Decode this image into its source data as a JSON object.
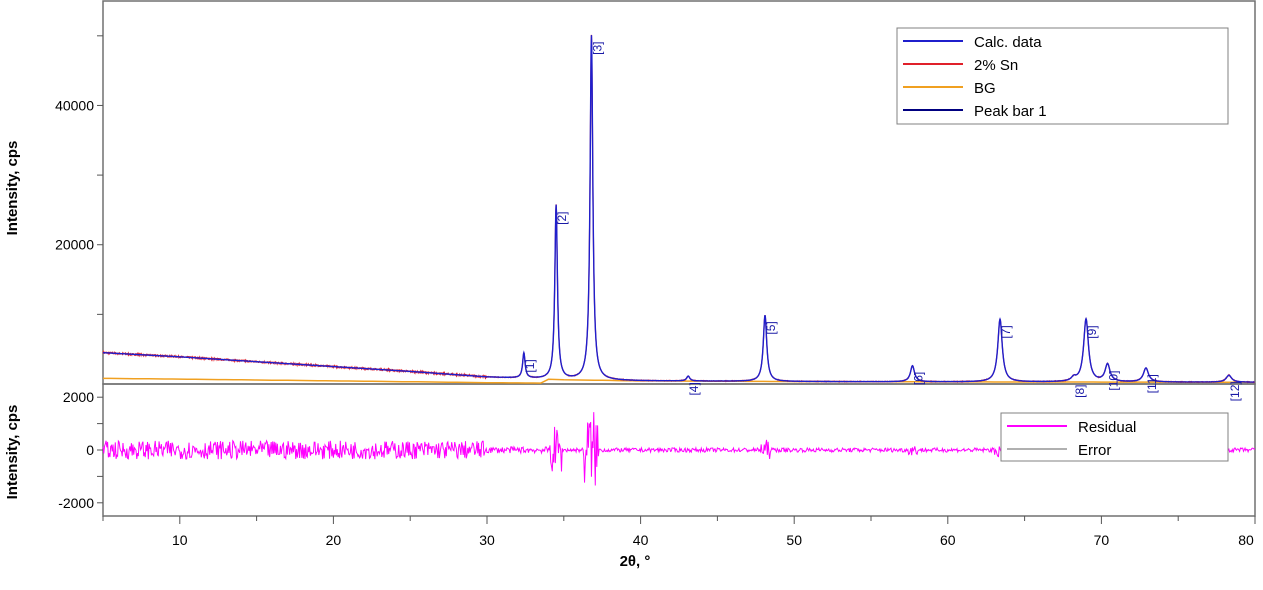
{
  "chart_data": [
    {
      "type": "line",
      "panel": "main",
      "xlabel": "2θ, °",
      "ylabel": "Intensity, cps",
      "xlim": [
        5,
        80
      ],
      "ylim": [
        0,
        55000
      ],
      "x_ticks": [
        10,
        20,
        30,
        40,
        50,
        60,
        70,
        80
      ],
      "y_ticks": [
        20000,
        40000
      ],
      "legend": {
        "placement": "top-right",
        "entries": [
          {
            "label": "Calc. data",
            "color": "#1f1fcc"
          },
          {
            "label": "2% Sn",
            "color": "#e0202a"
          },
          {
            "label": "BG",
            "color": "#f0a020"
          },
          {
            "label": "Peak bar 1",
            "color": "#000080"
          }
        ]
      },
      "background": {
        "x": [
          5,
          10,
          15,
          20,
          25,
          30,
          35,
          40,
          50,
          60,
          70,
          80
        ],
        "y": [
          4500,
          3900,
          3200,
          2500,
          1800,
          1000,
          600,
          450,
          350,
          300,
          280,
          250
        ]
      },
      "peaks": [
        {
          "label": "[1]",
          "x": 32.4,
          "y": 3600
        },
        {
          "label": "[2]",
          "x": 34.5,
          "y": 25000
        },
        {
          "label": "[3]",
          "x": 36.8,
          "y": 49500
        },
        {
          "label": "[4]",
          "x": 43.1,
          "y": 700
        },
        {
          "label": "[5]",
          "x": 48.1,
          "y": 9500
        },
        {
          "label": "[6]",
          "x": 57.7,
          "y": 2300
        },
        {
          "label": "[7]",
          "x": 63.4,
          "y": 9000
        },
        {
          "label": "[8]",
          "x": 68.2,
          "y": 500
        },
        {
          "label": "[9]",
          "x": 69.0,
          "y": 9000
        },
        {
          "label": "[10]",
          "x": 70.4,
          "y": 2500
        },
        {
          "label": "[11]",
          "x": 72.9,
          "y": 2000
        },
        {
          "label": "[12]",
          "x": 78.3,
          "y": 1000
        }
      ],
      "colors": {
        "calc": "#1f1fcc",
        "observed": "#e0202a",
        "bg": "#f0a020",
        "peak_bar": "#000080"
      }
    },
    {
      "type": "line",
      "panel": "residual",
      "xlabel": "2θ, °",
      "ylabel": "Intensity, cps",
      "xlim": [
        5,
        80
      ],
      "ylim": [
        -2500,
        2500
      ],
      "y_ticks": [
        2000,
        0,
        -2000
      ],
      "legend": {
        "placement": "right",
        "entries": [
          {
            "label": "Residual",
            "color": "#ff00ff"
          },
          {
            "label": "Error",
            "color": "#b0b0b0"
          }
        ]
      },
      "noise_bands": [
        {
          "x": [
            5,
            30
          ],
          "amplitude": 350
        },
        {
          "x": [
            30,
            34
          ],
          "amplitude": 120
        },
        {
          "x": [
            34.5,
            34.5
          ],
          "amplitude": 900
        },
        {
          "x": [
            36.8,
            36.8
          ],
          "amplitude": 1500
        },
        {
          "x": [
            38,
            80
          ],
          "amplitude": 80
        }
      ]
    }
  ]
}
